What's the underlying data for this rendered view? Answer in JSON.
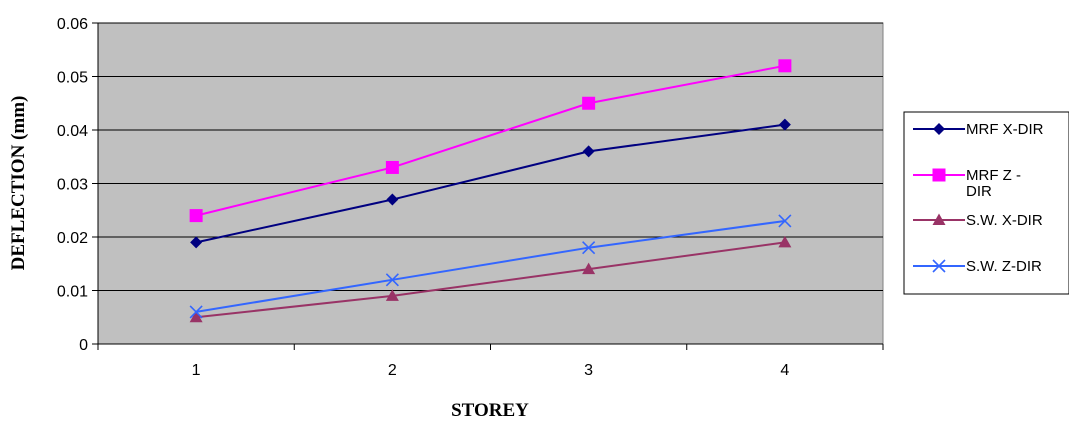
{
  "chart_data": {
    "type": "line",
    "title": "",
    "xlabel": "STOREY",
    "ylabel": "DEFLECTION (mm)",
    "categories": [
      "1",
      "2",
      "3",
      "4"
    ],
    "ylim": [
      0,
      0.06
    ],
    "y_ticks": [
      "0",
      "0.01",
      "0.02",
      "0.03",
      "0.04",
      "0.05",
      "0.06"
    ],
    "grid": "horizontal",
    "plot_background": "#c0c0c0",
    "legend_position": "right",
    "series": [
      {
        "name": "MRF X-DIR",
        "legend_lines": [
          "MRF X-DIR"
        ],
        "values": [
          0.019,
          0.027,
          0.036,
          0.041
        ],
        "color": "#000080",
        "marker": "diamond"
      },
      {
        "name": "MRF Z - DIR",
        "legend_lines": [
          "MRF Z -",
          "DIR"
        ],
        "values": [
          0.024,
          0.033,
          0.045,
          0.052
        ],
        "color": "#ff00ff",
        "marker": "square"
      },
      {
        "name": "S.W. X-DIR",
        "legend_lines": [
          "S.W. X-DIR"
        ],
        "values": [
          0.005,
          0.009,
          0.014,
          0.019
        ],
        "color": "#993366",
        "marker": "triangle"
      },
      {
        "name": "S.W. Z-DIR",
        "legend_lines": [
          "S.W. Z-DIR"
        ],
        "values": [
          0.006,
          0.012,
          0.018,
          0.023
        ],
        "color": "#3366ff",
        "marker": "x"
      }
    ]
  }
}
